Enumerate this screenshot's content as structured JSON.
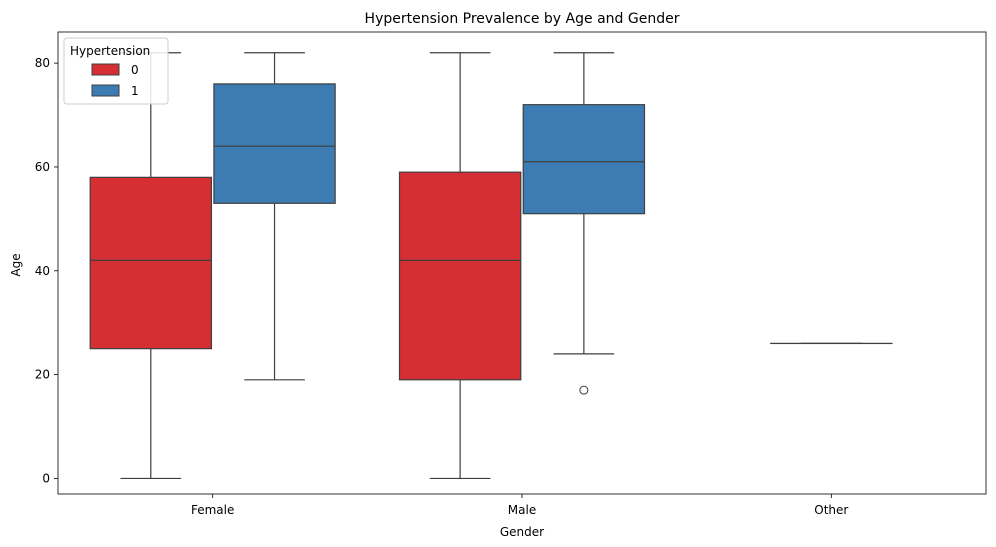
{
  "chart_data": {
    "type": "boxplot",
    "title": "Hypertension Prevalence by Age and Gender",
    "xlabel": "Gender",
    "ylabel": "Age",
    "categories": [
      "Female",
      "Male",
      "Other"
    ],
    "ylim": [
      -3,
      86
    ],
    "yticks": [
      0,
      20,
      40,
      60,
      80
    ],
    "grid": false,
    "legend": {
      "title": "Hypertension",
      "position": "top-left"
    },
    "series": [
      {
        "name": "0",
        "color": "#d62f33",
        "boxes": [
          {
            "category": "Female",
            "whislo": 0,
            "q1": 25,
            "med": 42,
            "q3": 58,
            "whishi": 82,
            "fliers": []
          },
          {
            "category": "Male",
            "whislo": 0,
            "q1": 19,
            "med": 42,
            "q3": 59,
            "whishi": 82,
            "fliers": []
          },
          {
            "category": "Other",
            "whislo": 26,
            "q1": 26,
            "med": 26,
            "q3": 26,
            "whishi": 26,
            "fliers": []
          }
        ]
      },
      {
        "name": "1",
        "color": "#3d7cb3",
        "boxes": [
          {
            "category": "Female",
            "whislo": 19,
            "q1": 53,
            "med": 64,
            "q3": 76,
            "whishi": 82,
            "fliers": []
          },
          {
            "category": "Male",
            "whislo": 24,
            "q1": 51,
            "med": 61,
            "q3": 72,
            "whishi": 82,
            "fliers": [
              17
            ]
          }
        ]
      }
    ]
  }
}
